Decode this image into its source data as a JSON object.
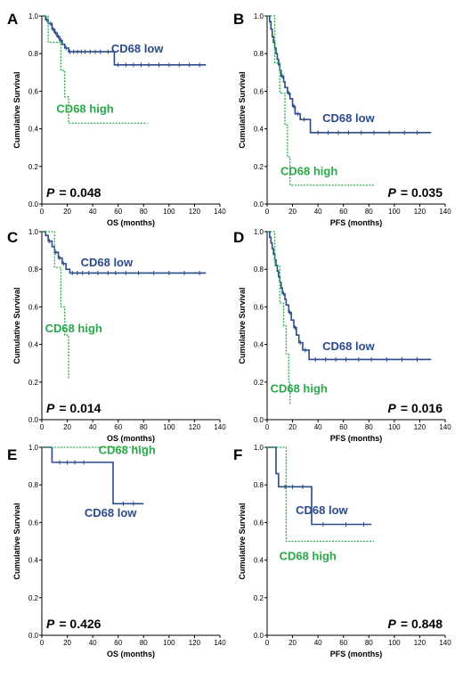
{
  "colors": {
    "low": "#2a4a8a",
    "high": "#2aa84a",
    "axis": "#000000"
  },
  "chart_data": [
    {
      "panel": "A",
      "type": "line",
      "xlabel": "OS (months)",
      "ylabel": "Cumulative Survival",
      "xlim": [
        0,
        140
      ],
      "ylim": [
        0,
        1.0
      ],
      "xticks": [
        0,
        20,
        40,
        60,
        80,
        100,
        120,
        140
      ],
      "yticks": [
        0,
        0.2,
        0.4,
        0.6,
        0.8,
        1.0
      ],
      "p_label": "P",
      "p_value": "= 0.048",
      "series": [
        {
          "name": "CD68 low",
          "key": "low",
          "label_at": [
            75,
            0.805
          ],
          "steps": [
            [
              0,
              1.0
            ],
            [
              3,
              0.98
            ],
            [
              5,
              0.96
            ],
            [
              8,
              0.93
            ],
            [
              10,
              0.91
            ],
            [
              12,
              0.89
            ],
            [
              14,
              0.87
            ],
            [
              16,
              0.85
            ],
            [
              18,
              0.83
            ],
            [
              21,
              0.81
            ],
            [
              57,
              0.74
            ],
            [
              129,
              0.74
            ]
          ],
          "censors": [
            [
              4,
              0.98
            ],
            [
              7,
              0.96
            ],
            [
              9,
              0.93
            ],
            [
              11,
              0.91
            ],
            [
              13,
              0.89
            ],
            [
              15,
              0.87
            ],
            [
              19,
              0.83
            ],
            [
              22,
              0.81
            ],
            [
              25,
              0.81
            ],
            [
              28,
              0.81
            ],
            [
              31,
              0.81
            ],
            [
              34,
              0.81
            ],
            [
              38,
              0.81
            ],
            [
              42,
              0.81
            ],
            [
              46,
              0.81
            ],
            [
              52,
              0.81
            ],
            [
              60,
              0.74
            ],
            [
              66,
              0.74
            ],
            [
              72,
              0.74
            ],
            [
              78,
              0.74
            ],
            [
              84,
              0.74
            ],
            [
              92,
              0.74
            ],
            [
              100,
              0.74
            ],
            [
              108,
              0.74
            ],
            [
              116,
              0.74
            ],
            [
              124,
              0.74
            ]
          ]
        },
        {
          "name": "CD68 high",
          "key": "high",
          "label_at": [
            34,
            0.485
          ],
          "steps": [
            [
              0,
              1.0
            ],
            [
              5,
              0.86
            ],
            [
              15,
              0.71
            ],
            [
              18,
              0.57
            ],
            [
              21,
              0.43
            ],
            [
              83,
              0.43
            ]
          ],
          "censors": []
        }
      ]
    },
    {
      "panel": "B",
      "type": "line",
      "xlabel": "PFS (months)",
      "ylabel": "Cumulative Survival",
      "xlim": [
        0,
        140
      ],
      "ylim": [
        0,
        1.0
      ],
      "xticks": [
        0,
        20,
        40,
        60,
        80,
        100,
        120,
        140
      ],
      "yticks": [
        0,
        0.2,
        0.4,
        0.6,
        0.8,
        1.0
      ],
      "p_label": "P",
      "p_value": "= 0.035",
      "series": [
        {
          "name": "CD68 low",
          "key": "low",
          "label_at": [
            64,
            0.435
          ],
          "steps": [
            [
              0,
              1.0
            ],
            [
              2,
              0.97
            ],
            [
              3,
              0.93
            ],
            [
              4,
              0.89
            ],
            [
              5,
              0.86
            ],
            [
              6,
              0.83
            ],
            [
              7,
              0.8
            ],
            [
              8,
              0.77
            ],
            [
              9,
              0.74
            ],
            [
              10,
              0.71
            ],
            [
              11,
              0.68
            ],
            [
              13,
              0.65
            ],
            [
              14,
              0.62
            ],
            [
              16,
              0.59
            ],
            [
              18,
              0.56
            ],
            [
              20,
              0.52
            ],
            [
              22,
              0.48
            ],
            [
              26,
              0.45
            ],
            [
              34,
              0.38
            ],
            [
              129,
              0.38
            ]
          ],
          "censors": [
            [
              12,
              0.68
            ],
            [
              17,
              0.59
            ],
            [
              21,
              0.52
            ],
            [
              24,
              0.48
            ],
            [
              29,
              0.45
            ],
            [
              40,
              0.38
            ],
            [
              48,
              0.38
            ],
            [
              56,
              0.38
            ],
            [
              64,
              0.38
            ],
            [
              74,
              0.38
            ],
            [
              84,
              0.38
            ],
            [
              96,
              0.38
            ],
            [
              108,
              0.38
            ],
            [
              118,
              0.38
            ]
          ]
        },
        {
          "name": "CD68 high",
          "key": "high",
          "label_at": [
            33,
            0.155
          ],
          "steps": [
            [
              0,
              1.0
            ],
            [
              6,
              0.75
            ],
            [
              10,
              0.59
            ],
            [
              14,
              0.42
            ],
            [
              16,
              0.25
            ],
            [
              18,
              0.1
            ],
            [
              84,
              0.1
            ]
          ],
          "censors": []
        }
      ]
    },
    {
      "panel": "C",
      "type": "line",
      "xlabel": "OS (months)",
      "ylabel": "Cumulative Survival",
      "xlim": [
        0,
        140
      ],
      "ylim": [
        0,
        1.0
      ],
      "xticks": [
        0,
        20,
        40,
        60,
        80,
        100,
        120,
        140
      ],
      "yticks": [
        0,
        0.2,
        0.4,
        0.6,
        0.8,
        1.0
      ],
      "p_label": "P",
      "p_value": "= 0.014",
      "series": [
        {
          "name": "CD68 low",
          "key": "low",
          "label_at": [
            51,
            0.815
          ],
          "steps": [
            [
              0,
              1.0
            ],
            [
              3,
              0.98
            ],
            [
              5,
              0.95
            ],
            [
              8,
              0.92
            ],
            [
              10,
              0.89
            ],
            [
              13,
              0.86
            ],
            [
              16,
              0.83
            ],
            [
              19,
              0.8
            ],
            [
              22,
              0.78
            ],
            [
              129,
              0.78
            ]
          ],
          "censors": [
            [
              6,
              0.95
            ],
            [
              11,
              0.89
            ],
            [
              14,
              0.86
            ],
            [
              17,
              0.83
            ],
            [
              24,
              0.78
            ],
            [
              28,
              0.78
            ],
            [
              32,
              0.78
            ],
            [
              37,
              0.78
            ],
            [
              44,
              0.78
            ],
            [
              52,
              0.78
            ],
            [
              58,
              0.78
            ],
            [
              66,
              0.78
            ],
            [
              76,
              0.78
            ],
            [
              88,
              0.78
            ],
            [
              100,
              0.78
            ],
            [
              112,
              0.78
            ],
            [
              124,
              0.78
            ]
          ]
        },
        {
          "name": "CD68 high",
          "key": "high",
          "label_at": [
            25,
            0.465
          ],
          "steps": [
            [
              0,
              1.0
            ],
            [
              10,
              0.81
            ],
            [
              15,
              0.6
            ],
            [
              18,
              0.45
            ],
            [
              21,
              0.22
            ]
          ],
          "censors": []
        }
      ]
    },
    {
      "panel": "D",
      "type": "line",
      "xlabel": "PFS (months)",
      "ylabel": "Cumulative Survival",
      "xlim": [
        0,
        140
      ],
      "ylim": [
        0,
        1.0
      ],
      "xticks": [
        0,
        20,
        40,
        60,
        80,
        100,
        120,
        140
      ],
      "yticks": [
        0,
        0.2,
        0.4,
        0.6,
        0.8,
        1.0
      ],
      "p_label": "P",
      "p_value": "= 0.016",
      "series": [
        {
          "name": "CD68 low",
          "key": "low",
          "label_at": [
            64,
            0.37
          ],
          "steps": [
            [
              0,
              1.0
            ],
            [
              2,
              0.97
            ],
            [
              3,
              0.94
            ],
            [
              4,
              0.91
            ],
            [
              5,
              0.88
            ],
            [
              6,
              0.85
            ],
            [
              7,
              0.82
            ],
            [
              8,
              0.79
            ],
            [
              9,
              0.76
            ],
            [
              10,
              0.73
            ],
            [
              11,
              0.7
            ],
            [
              12,
              0.67
            ],
            [
              14,
              0.64
            ],
            [
              15,
              0.61
            ],
            [
              17,
              0.57
            ],
            [
              19,
              0.53
            ],
            [
              21,
              0.49
            ],
            [
              23,
              0.45
            ],
            [
              25,
              0.41
            ],
            [
              28,
              0.37
            ],
            [
              33,
              0.32
            ],
            [
              129,
              0.32
            ]
          ],
          "censors": [
            [
              13,
              0.67
            ],
            [
              18,
              0.57
            ],
            [
              22,
              0.49
            ],
            [
              26,
              0.41
            ],
            [
              30,
              0.37
            ],
            [
              38,
              0.32
            ],
            [
              46,
              0.32
            ],
            [
              54,
              0.32
            ],
            [
              62,
              0.32
            ],
            [
              72,
              0.32
            ],
            [
              82,
              0.32
            ],
            [
              94,
              0.32
            ],
            [
              106,
              0.32
            ],
            [
              118,
              0.32
            ]
          ]
        },
        {
          "name": "CD68 high",
          "key": "high",
          "label_at": [
            25,
            0.145
          ],
          "steps": [
            [
              0,
              1.0
            ],
            [
              6,
              0.82
            ],
            [
              10,
              0.62
            ],
            [
              13,
              0.5
            ],
            [
              15,
              0.35
            ],
            [
              17,
              0.2
            ],
            [
              18,
              0.08
            ]
          ],
          "censors": []
        }
      ]
    },
    {
      "panel": "E",
      "type": "line",
      "xlabel": "OS (months)",
      "ylabel": "Cumulative Survival",
      "xlim": [
        0,
        140
      ],
      "ylim": [
        0,
        1.0
      ],
      "xticks": [
        0,
        20,
        40,
        60,
        80,
        100,
        120,
        140
      ],
      "yticks": [
        0,
        0.2,
        0.4,
        0.6,
        0.8,
        1.0
      ],
      "p_label": "P",
      "p_value": "= 0.426",
      "series": [
        {
          "name": "CD68 low",
          "key": "low",
          "label_at": [
            54,
            0.63
          ],
          "steps": [
            [
              0,
              1.0
            ],
            [
              8,
              0.92
            ],
            [
              56,
              0.7
            ],
            [
              80,
              0.7
            ]
          ],
          "censors": [
            [
              14,
              0.92
            ],
            [
              20,
              0.92
            ],
            [
              26,
              0.92
            ],
            [
              33,
              0.92
            ],
            [
              64,
              0.7
            ],
            [
              72,
              0.7
            ]
          ]
        },
        {
          "name": "CD68 high",
          "key": "high",
          "label_at": [
            67,
            0.965
          ],
          "steps": [
            [
              0,
              1.0
            ],
            [
              82,
              1.0
            ]
          ],
          "censors": []
        }
      ]
    },
    {
      "panel": "F",
      "type": "line",
      "xlabel": "PFS (months)",
      "ylabel": "Cumulative Survival",
      "xlim": [
        0,
        140
      ],
      "ylim": [
        0,
        1.0
      ],
      "xticks": [
        0,
        20,
        40,
        60,
        80,
        100,
        120,
        140
      ],
      "yticks": [
        0,
        0.2,
        0.4,
        0.6,
        0.8,
        1.0
      ],
      "p_label": "P",
      "p_value": "= 0.848",
      "series": [
        {
          "name": "CD68 low",
          "key": "low",
          "label_at": [
            43,
            0.645
          ],
          "steps": [
            [
              0,
              1.0
            ],
            [
              7,
              0.86
            ],
            [
              9,
              0.79
            ],
            [
              35,
              0.59
            ],
            [
              82,
              0.59
            ]
          ],
          "censors": [
            [
              14,
              0.79
            ],
            [
              20,
              0.79
            ],
            [
              28,
              0.79
            ],
            [
              44,
              0.59
            ],
            [
              62,
              0.59
            ],
            [
              76,
              0.59
            ]
          ]
        },
        {
          "name": "CD68 high",
          "key": "high",
          "label_at": [
            32,
            0.4
          ],
          "steps": [
            [
              0,
              1.0
            ],
            [
              15,
              0.5
            ],
            [
              84,
              0.5
            ]
          ],
          "censors": []
        }
      ]
    }
  ]
}
